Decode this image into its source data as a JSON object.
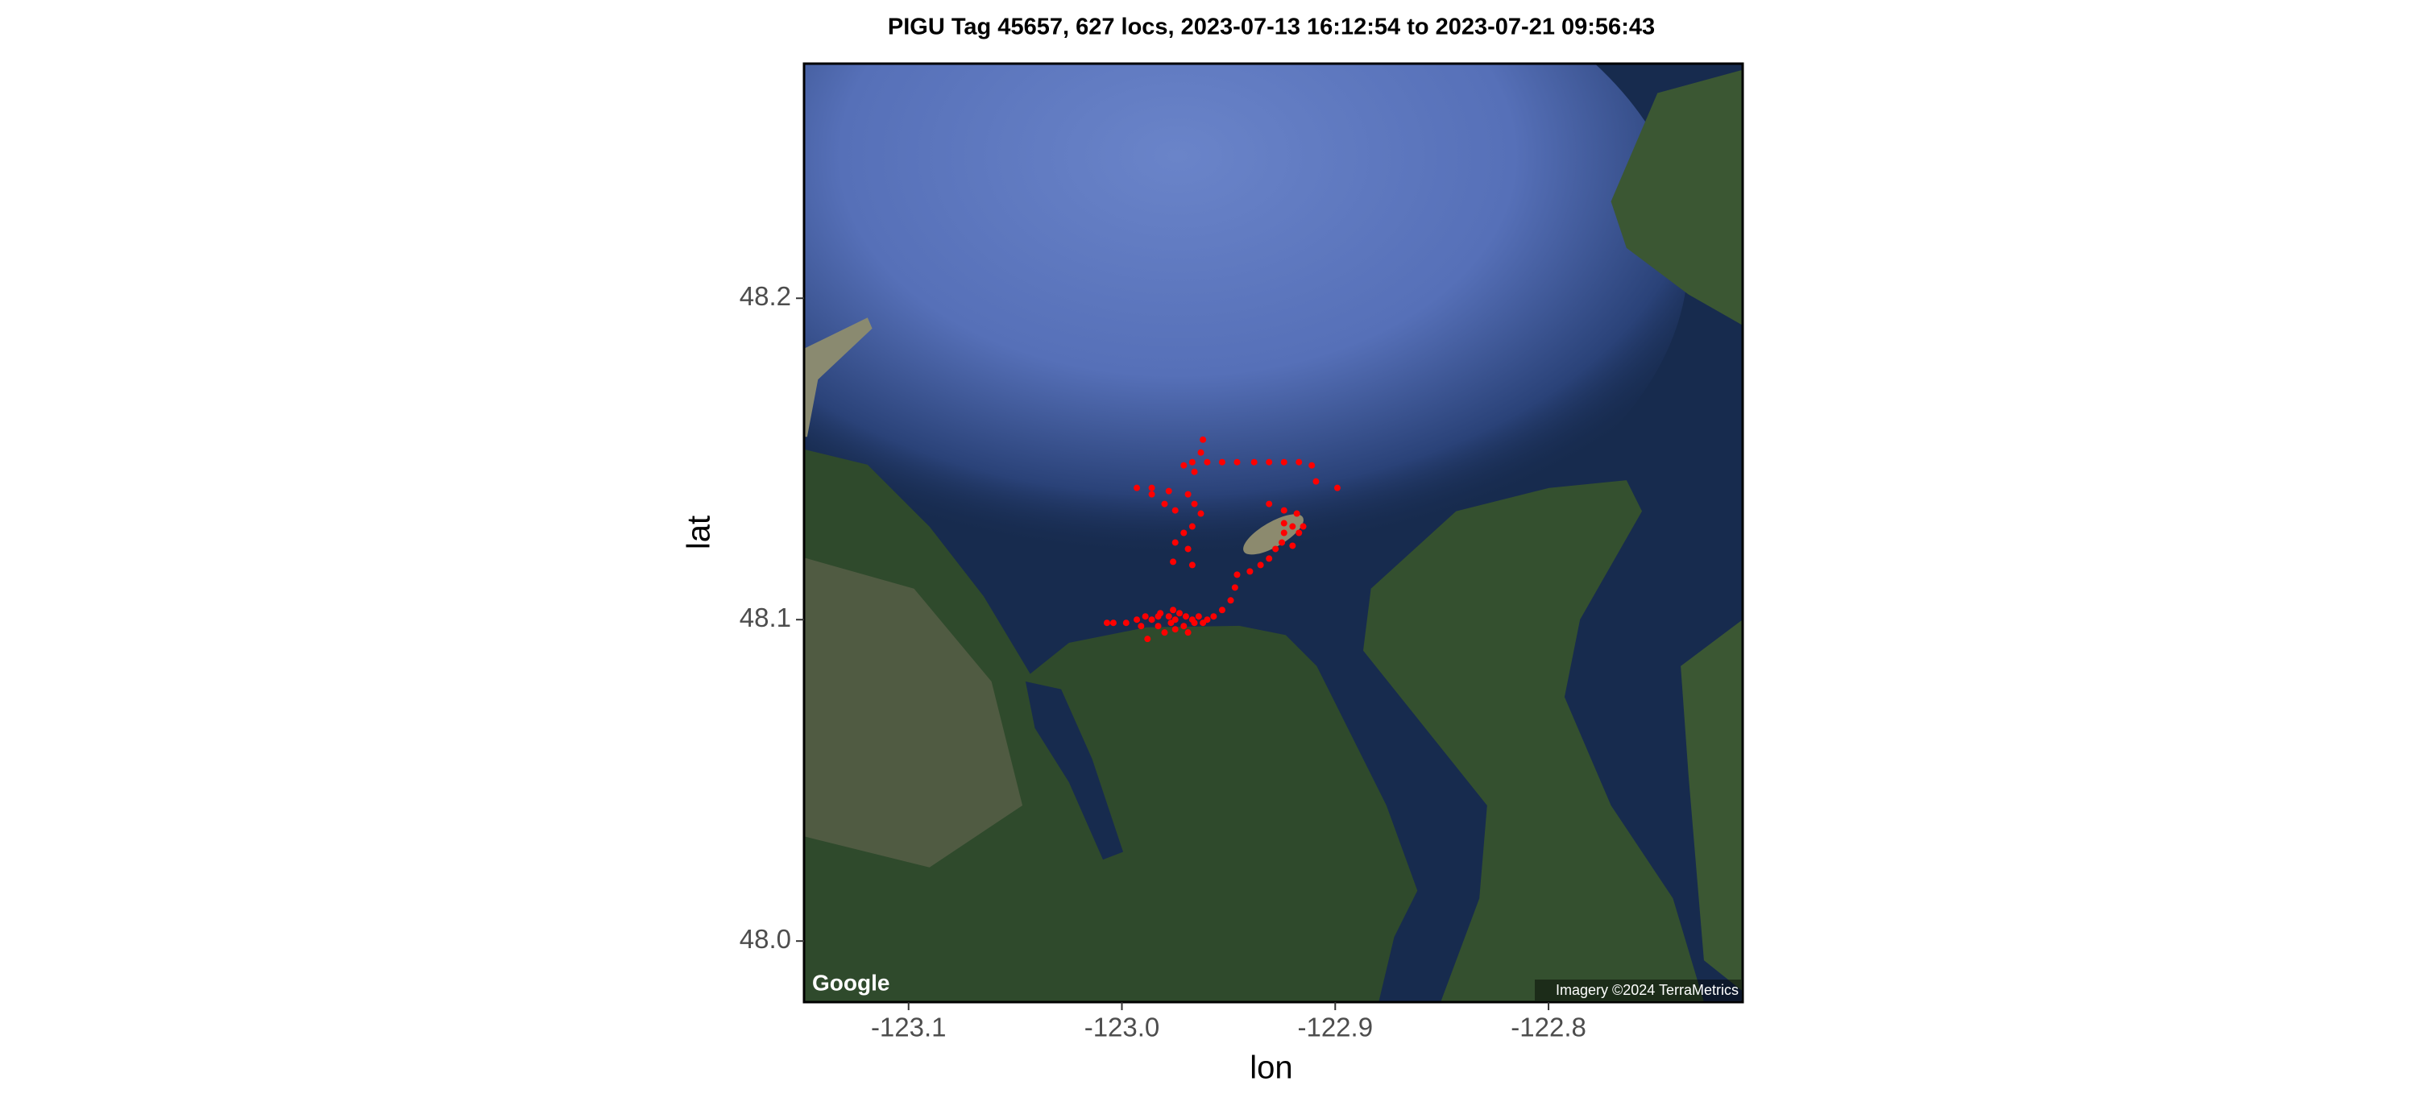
{
  "chart_data": {
    "type": "scatter",
    "title": "PIGU Tag 45657, 627 locs, 2023-07-13 16:12:54 to 2023-07-21 09:56:43",
    "xlabel": "lon",
    "ylabel": "lat",
    "xlim": [
      -123.149,
      -122.709
    ],
    "ylim": [
      47.981,
      48.273
    ],
    "xticks": [
      -123.1,
      {
        "value": -123.0,
        "label": "-123.0"
      },
      -122.9,
      -122.8
    ],
    "yticks": [
      {
        "value": 48.0,
        "label": "48.0"
      },
      48.1,
      48.2
    ],
    "color": "#ff0000",
    "annotations": [
      "Google",
      "Imagery ©2024 TerraMetrics"
    ],
    "x": [
      -122.993,
      -122.986,
      -122.978,
      -122.971,
      -122.967,
      -122.96,
      -122.953,
      -122.946,
      -122.938,
      -122.931,
      -122.924,
      -122.917,
      -122.911,
      -122.909,
      -122.899,
      -122.962,
      -122.963,
      -122.966,
      -122.969,
      -122.966,
      -122.963,
      -122.967,
      -122.971,
      -122.975,
      -122.969,
      -122.976,
      -122.967,
      -122.986,
      -122.98,
      -122.975,
      -122.931,
      -122.924,
      -122.918,
      -122.92,
      -122.924,
      -122.917,
      -122.925,
      -122.92,
      -122.928,
      -122.931,
      -122.935,
      -122.924,
      -122.915,
      -122.94,
      -122.946,
      -122.947,
      -122.949,
      -122.953,
      -123.007,
      -123.004,
      -122.998,
      -122.993,
      -122.989,
      -122.986,
      -122.983,
      -122.982,
      -122.978,
      -122.977,
      -122.975,
      -122.973,
      -122.971,
      -122.97,
      -122.967,
      -122.966,
      -122.964,
      -122.962,
      -122.96,
      -122.957,
      -122.988,
      -122.98,
      -122.975,
      -122.969,
      -122.976,
      -122.983,
      -122.991
    ],
    "y": [
      48.141,
      48.141,
      48.14,
      48.148,
      48.149,
      48.149,
      48.149,
      48.149,
      48.149,
      48.149,
      48.149,
      48.149,
      48.148,
      48.143,
      48.141,
      48.156,
      48.152,
      48.146,
      48.139,
      48.136,
      48.133,
      48.129,
      48.127,
      48.124,
      48.122,
      48.118,
      48.117,
      48.139,
      48.136,
      48.134,
      48.136,
      48.134,
      48.133,
      48.129,
      48.127,
      48.127,
      48.124,
      48.123,
      48.122,
      48.119,
      48.117,
      48.13,
      48.129,
      48.115,
      48.114,
      48.11,
      48.106,
      48.103,
      48.099,
      48.099,
      48.099,
      48.1,
      48.101,
      48.1,
      48.098,
      48.102,
      48.101,
      48.099,
      48.1,
      48.102,
      48.098,
      48.101,
      48.1,
      48.099,
      48.101,
      48.099,
      48.1,
      48.101,
      48.094,
      48.096,
      48.097,
      48.096,
      48.103,
      48.101,
      48.098
    ]
  }
}
